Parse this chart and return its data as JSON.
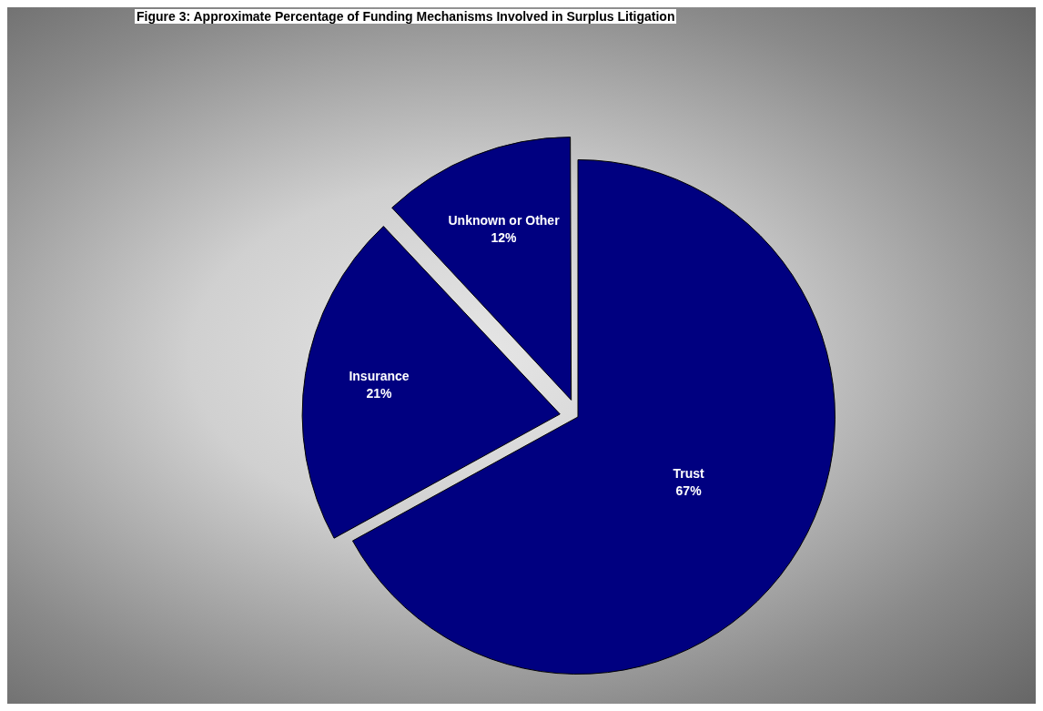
{
  "chart_data": {
    "type": "pie",
    "title": "Figure 3: Approximate Percentage of Funding Mechanisms Involved in Surplus Litigation",
    "categories": [
      "Trust",
      "Insurance",
      "Unknown or Other"
    ],
    "values": [
      67,
      21,
      12
    ],
    "colors": [
      "#000080",
      "#000080",
      "#000080"
    ],
    "value_labels": [
      "67%",
      "21%",
      "12%"
    ],
    "legend": false
  }
}
